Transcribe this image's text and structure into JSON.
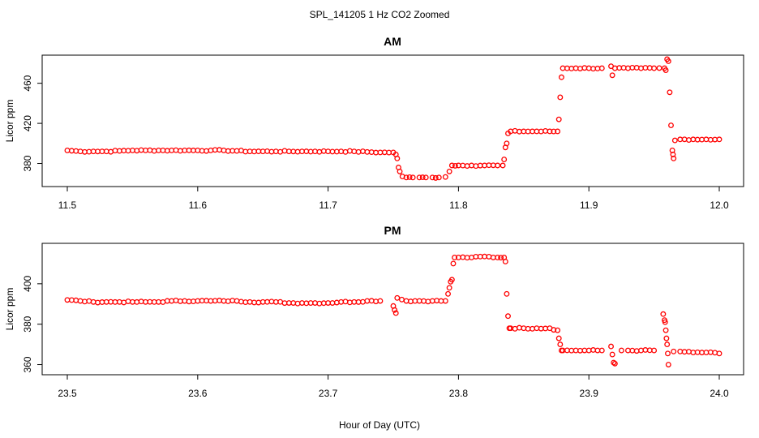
{
  "title": "SPL_141205  1 Hz CO2 Zoomed",
  "xlabel": "Hour of Day (UTC)",
  "chart_data": [
    {
      "type": "scatter",
      "title": "AM",
      "ylabel": "Licor ppm",
      "xlim": [
        11.5,
        12.0
      ],
      "ylim": [
        361,
        484
      ],
      "xticks": [
        "11.5",
        "11.6",
        "11.7",
        "11.8",
        "11.9",
        "12.0"
      ],
      "xtick_values": [
        11.5,
        11.6,
        11.7,
        11.8,
        11.9,
        12.0
      ],
      "yticks": [
        "380",
        "420",
        "460"
      ],
      "ytick_values": [
        380,
        420,
        460
      ],
      "color": "#ff0000",
      "points": [
        [
          11.5,
          393
        ],
        [
          11.51,
          392
        ],
        [
          11.52,
          392
        ],
        [
          11.53,
          392
        ],
        [
          11.54,
          392.5
        ],
        [
          11.55,
          393
        ],
        [
          11.56,
          393
        ],
        [
          11.57,
          393
        ],
        [
          11.58,
          393
        ],
        [
          11.59,
          393
        ],
        [
          11.6,
          393
        ],
        [
          11.61,
          393
        ],
        [
          11.62,
          393
        ],
        [
          11.63,
          392.5
        ],
        [
          11.64,
          392
        ],
        [
          11.65,
          392
        ],
        [
          11.66,
          392
        ],
        [
          11.67,
          392
        ],
        [
          11.68,
          392
        ],
        [
          11.69,
          392
        ],
        [
          11.7,
          392
        ],
        [
          11.71,
          392
        ],
        [
          11.72,
          392
        ],
        [
          11.73,
          391.5
        ],
        [
          11.74,
          391
        ],
        [
          11.75,
          391
        ],
        [
          11.752,
          389
        ],
        [
          11.753,
          385
        ],
        [
          11.754,
          376
        ],
        [
          11.755,
          372
        ],
        [
          11.757,
          367
        ],
        [
          11.76,
          366
        ],
        [
          11.765,
          366
        ],
        [
          11.77,
          366
        ],
        [
          11.775,
          366
        ],
        [
          11.78,
          366
        ],
        [
          11.785,
          366
        ],
        [
          11.79,
          366.5
        ],
        [
          11.793,
          372
        ],
        [
          11.795,
          378
        ],
        [
          11.8,
          378
        ],
        [
          11.81,
          378
        ],
        [
          11.82,
          378
        ],
        [
          11.83,
          378
        ],
        [
          11.834,
          378
        ],
        [
          11.835,
          384
        ],
        [
          11.836,
          396
        ],
        [
          11.837,
          400
        ],
        [
          11.838,
          410
        ],
        [
          11.84,
          412
        ],
        [
          11.85,
          412
        ],
        [
          11.86,
          412
        ],
        [
          11.87,
          412
        ],
        [
          11.876,
          412
        ],
        [
          11.877,
          424
        ],
        [
          11.878,
          446
        ],
        [
          11.879,
          466
        ],
        [
          11.88,
          475
        ],
        [
          11.89,
          475
        ],
        [
          11.9,
          475
        ],
        [
          11.91,
          475
        ],
        [
          11.917,
          477
        ],
        [
          11.918,
          468
        ],
        [
          11.92,
          475
        ],
        [
          11.93,
          475
        ],
        [
          11.94,
          475
        ],
        [
          11.95,
          475
        ],
        [
          11.958,
          475
        ],
        [
          11.959,
          473
        ],
        [
          11.96,
          484
        ],
        [
          11.961,
          482
        ],
        [
          11.962,
          451
        ],
        [
          11.963,
          418
        ],
        [
          11.964,
          393
        ],
        [
          11.9645,
          389
        ],
        [
          11.965,
          385
        ],
        [
          11.966,
          403
        ],
        [
          11.97,
          404
        ],
        [
          11.98,
          404
        ],
        [
          11.99,
          404
        ],
        [
          12.0,
          404
        ]
      ]
    },
    {
      "type": "scatter",
      "title": "PM",
      "ylabel": "Licor ppm",
      "xlim": [
        23.5,
        24.0
      ],
      "ylim": [
        357,
        418
      ],
      "xticks": [
        "23.5",
        "23.6",
        "23.7",
        "23.8",
        "23.9",
        "24.0"
      ],
      "xtick_values": [
        23.5,
        23.6,
        23.7,
        23.8,
        23.9,
        24.0
      ],
      "yticks": [
        "360",
        "380",
        "400"
      ],
      "ytick_values": [
        360,
        380,
        400
      ],
      "color": "#ff0000",
      "points": [
        [
          23.5,
          392
        ],
        [
          23.51,
          391.5
        ],
        [
          23.52,
          391
        ],
        [
          23.53,
          391
        ],
        [
          23.54,
          391
        ],
        [
          23.55,
          391
        ],
        [
          23.56,
          391
        ],
        [
          23.57,
          391
        ],
        [
          23.58,
          391.5
        ],
        [
          23.59,
          391.5
        ],
        [
          23.6,
          391.5
        ],
        [
          23.61,
          391.5
        ],
        [
          23.62,
          391.5
        ],
        [
          23.63,
          391.5
        ],
        [
          23.64,
          391
        ],
        [
          23.65,
          391
        ],
        [
          23.66,
          391
        ],
        [
          23.67,
          390.5
        ],
        [
          23.68,
          390.5
        ],
        [
          23.69,
          390.5
        ],
        [
          23.7,
          390.5
        ],
        [
          23.71,
          391
        ],
        [
          23.72,
          391
        ],
        [
          23.73,
          391.5
        ],
        [
          23.74,
          391.5
        ],
        [
          23.75,
          389
        ],
        [
          23.751,
          387
        ],
        [
          23.752,
          385.5
        ],
        [
          23.753,
          393
        ],
        [
          23.76,
          391.5
        ],
        [
          23.77,
          391.5
        ],
        [
          23.78,
          391.5
        ],
        [
          23.79,
          391.5
        ],
        [
          23.792,
          395
        ],
        [
          23.793,
          398
        ],
        [
          23.794,
          401
        ],
        [
          23.795,
          402
        ],
        [
          23.796,
          410
        ],
        [
          23.797,
          413
        ],
        [
          23.8,
          413
        ],
        [
          23.81,
          413
        ],
        [
          23.82,
          413.5
        ],
        [
          23.83,
          413
        ],
        [
          23.835,
          413
        ],
        [
          23.836,
          411
        ],
        [
          23.837,
          395
        ],
        [
          23.838,
          384
        ],
        [
          23.839,
          378
        ],
        [
          23.84,
          378
        ],
        [
          23.85,
          378
        ],
        [
          23.86,
          378
        ],
        [
          23.87,
          378
        ],
        [
          23.876,
          377
        ],
        [
          23.877,
          373
        ],
        [
          23.878,
          370
        ],
        [
          23.879,
          367
        ],
        [
          23.88,
          367
        ],
        [
          23.89,
          367
        ],
        [
          23.9,
          367
        ],
        [
          23.91,
          367
        ],
        [
          23.917,
          369
        ],
        [
          23.918,
          365
        ],
        [
          23.919,
          361
        ],
        [
          23.92,
          360.5
        ],
        [
          23.925,
          367
        ],
        [
          23.93,
          367
        ],
        [
          23.94,
          367
        ],
        [
          23.95,
          367
        ],
        [
          23.957,
          385
        ],
        [
          23.958,
          382
        ],
        [
          23.9585,
          381
        ],
        [
          23.959,
          377
        ],
        [
          23.9595,
          373
        ],
        [
          23.96,
          370
        ],
        [
          23.9605,
          365.5
        ],
        [
          23.961,
          360
        ],
        [
          23.965,
          366.5
        ],
        [
          23.97,
          366.5
        ],
        [
          23.98,
          366
        ],
        [
          23.99,
          366
        ],
        [
          24.0,
          365.5
        ]
      ]
    }
  ]
}
